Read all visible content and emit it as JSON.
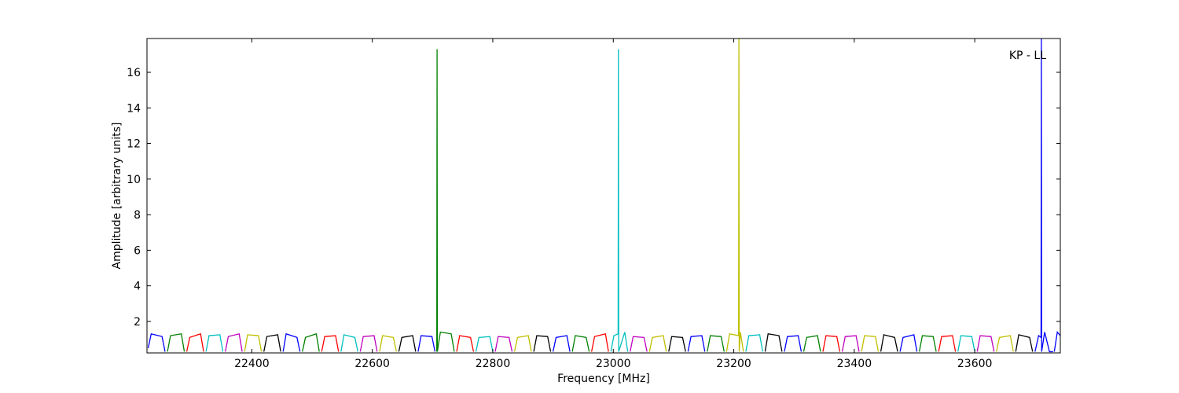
{
  "chart_data": {
    "type": "line",
    "xlabel": "Frequency [MHz]",
    "ylabel": "Amplitude [arbitrary units]",
    "annotation": "KP - LL",
    "xlim": [
      22226,
      23742
    ],
    "ylim": [
      0.23,
      17.9
    ],
    "xticks": [
      22400,
      22600,
      22800,
      23000,
      23200,
      23400,
      23600
    ],
    "yticks": [
      2,
      4,
      6,
      8,
      10,
      12,
      14,
      16
    ],
    "series": [
      {
        "color": "#0000ff",
        "x": [
          22228,
          22233,
          22251,
          22256
        ],
        "values": [
          0.5,
          1.3,
          1.15,
          0.3
        ]
      },
      {
        "color": "#008000",
        "x": [
          22260,
          22265,
          22283,
          22288
        ],
        "values": [
          0.3,
          1.2,
          1.3,
          0.3
        ]
      },
      {
        "color": "#ff0000",
        "x": [
          22292,
          22297,
          22315,
          22320
        ],
        "values": [
          0.3,
          1.1,
          1.3,
          0.3
        ]
      },
      {
        "color": "#00bfbf",
        "x": [
          22324,
          22329,
          22347,
          22352
        ],
        "values": [
          0.3,
          1.2,
          1.25,
          0.3
        ]
      },
      {
        "color": "#bf00bf",
        "x": [
          22356,
          22361,
          22379,
          22384
        ],
        "values": [
          0.3,
          1.15,
          1.3,
          0.3
        ]
      },
      {
        "color": "#bfbf00",
        "x": [
          22388,
          22393,
          22411,
          22416
        ],
        "values": [
          0.3,
          1.25,
          1.2,
          0.3
        ]
      },
      {
        "color": "#000000",
        "x": [
          22420,
          22425,
          22443,
          22448
        ],
        "values": [
          0.3,
          1.15,
          1.25,
          0.3
        ]
      },
      {
        "color": "#0000ff",
        "x": [
          22452,
          22457,
          22475,
          22480
        ],
        "values": [
          0.3,
          1.3,
          1.1,
          0.3
        ]
      },
      {
        "color": "#008000",
        "x": [
          22484,
          22489,
          22507,
          22512
        ],
        "values": [
          0.3,
          1.1,
          1.3,
          0.3
        ]
      },
      {
        "color": "#ff0000",
        "x": [
          22516,
          22521,
          22539,
          22544
        ],
        "values": [
          0.3,
          1.15,
          1.2,
          0.3
        ]
      },
      {
        "color": "#00bfbf",
        "x": [
          22548,
          22553,
          22571,
          22576
        ],
        "values": [
          0.3,
          1.25,
          1.1,
          0.3
        ]
      },
      {
        "color": "#bf00bf",
        "x": [
          22580,
          22585,
          22603,
          22608
        ],
        "values": [
          0.3,
          1.15,
          1.2,
          0.3
        ]
      },
      {
        "color": "#bfbf00",
        "x": [
          22612,
          22617,
          22635,
          22640
        ],
        "values": [
          0.3,
          1.2,
          1.1,
          0.3
        ]
      },
      {
        "color": "#000000",
        "x": [
          22644,
          22649,
          22667,
          22672
        ],
        "values": [
          0.3,
          1.1,
          1.2,
          0.3
        ]
      },
      {
        "color": "#0000ff",
        "x": [
          22676,
          22681,
          22699,
          22704
        ],
        "values": [
          0.3,
          1.2,
          1.15,
          0.3
        ]
      },
      {
        "color": "#008000",
        "x": [
          22707,
          22707.5,
          22708,
          22713,
          22731,
          22736
        ],
        "values": [
          0.3,
          17.3,
          0.3,
          1.4,
          1.3,
          0.3
        ]
      },
      {
        "color": "#ff0000",
        "x": [
          22740,
          22745,
          22763,
          22768
        ],
        "values": [
          0.3,
          1.2,
          1.1,
          0.3
        ]
      },
      {
        "color": "#00bfbf",
        "x": [
          22772,
          22777,
          22795,
          22800
        ],
        "values": [
          0.3,
          1.1,
          1.15,
          0.3
        ]
      },
      {
        "color": "#bf00bf",
        "x": [
          22804,
          22809,
          22827,
          22832
        ],
        "values": [
          0.3,
          1.15,
          1.1,
          0.3
        ]
      },
      {
        "color": "#bfbf00",
        "x": [
          22836,
          22841,
          22859,
          22864
        ],
        "values": [
          0.3,
          1.1,
          1.2,
          0.3
        ]
      },
      {
        "color": "#000000",
        "x": [
          22868,
          22873,
          22891,
          22896
        ],
        "values": [
          0.3,
          1.2,
          1.15,
          0.3
        ]
      },
      {
        "color": "#0000ff",
        "x": [
          22900,
          22905,
          22923,
          22928
        ],
        "values": [
          0.3,
          1.1,
          1.2,
          0.3
        ]
      },
      {
        "color": "#008000",
        "x": [
          22932,
          22937,
          22955,
          22960
        ],
        "values": [
          0.3,
          1.2,
          1.1,
          0.3
        ]
      },
      {
        "color": "#ff0000",
        "x": [
          22964,
          22969,
          22987,
          22992
        ],
        "values": [
          0.3,
          1.15,
          1.3,
          0.3
        ]
      },
      {
        "color": "#00bfbf",
        "x": [
          22996,
          23001,
          23008,
          23008.5,
          23009,
          23019,
          23024
        ],
        "values": [
          0.3,
          1.2,
          1.3,
          17.3,
          0.3,
          1.4,
          0.3
        ]
      },
      {
        "color": "#bf00bf",
        "x": [
          23028,
          23033,
          23051,
          23056
        ],
        "values": [
          0.3,
          1.15,
          1.1,
          0.3
        ]
      },
      {
        "color": "#bfbf00",
        "x": [
          23060,
          23065,
          23083,
          23088
        ],
        "values": [
          0.3,
          1.1,
          1.2,
          0.3
        ]
      },
      {
        "color": "#000000",
        "x": [
          23092,
          23097,
          23115,
          23120
        ],
        "values": [
          0.3,
          1.15,
          1.1,
          0.3
        ]
      },
      {
        "color": "#0000ff",
        "x": [
          23124,
          23129,
          23147,
          23152
        ],
        "values": [
          0.3,
          1.15,
          1.2,
          0.3
        ]
      },
      {
        "color": "#008000",
        "x": [
          23156,
          23161,
          23179,
          23184
        ],
        "values": [
          0.3,
          1.2,
          1.15,
          0.3
        ]
      },
      {
        "color": "#bfbf00",
        "x": [
          23188,
          23193,
          23208,
          23208.5,
          23209,
          23211,
          23216
        ],
        "values": [
          0.3,
          1.3,
          1.2,
          17.9,
          0.3,
          1.4,
          0.3
        ]
      },
      {
        "color": "#00bfbf",
        "x": [
          23220,
          23225,
          23243,
          23248
        ],
        "values": [
          0.3,
          1.2,
          1.25,
          0.3
        ]
      },
      {
        "color": "#000000",
        "x": [
          23252,
          23257,
          23275,
          23280
        ],
        "values": [
          0.3,
          1.3,
          1.2,
          0.3
        ]
      },
      {
        "color": "#0000ff",
        "x": [
          23284,
          23289,
          23307,
          23312
        ],
        "values": [
          0.3,
          1.15,
          1.2,
          0.3
        ]
      },
      {
        "color": "#008000",
        "x": [
          23316,
          23321,
          23339,
          23344
        ],
        "values": [
          0.3,
          1.1,
          1.2,
          0.3
        ]
      },
      {
        "color": "#ff0000",
        "x": [
          23348,
          23353,
          23371,
          23376
        ],
        "values": [
          0.3,
          1.2,
          1.15,
          0.3
        ]
      },
      {
        "color": "#bf00bf",
        "x": [
          23380,
          23385,
          23403,
          23408
        ],
        "values": [
          0.3,
          1.15,
          1.2,
          0.3
        ]
      },
      {
        "color": "#bfbf00",
        "x": [
          23412,
          23417,
          23435,
          23440
        ],
        "values": [
          0.3,
          1.2,
          1.15,
          0.3
        ]
      },
      {
        "color": "#000000",
        "x": [
          23444,
          23449,
          23467,
          23472
        ],
        "values": [
          0.3,
          1.25,
          1.1,
          0.3
        ]
      },
      {
        "color": "#0000ff",
        "x": [
          23476,
          23481,
          23499,
          23504
        ],
        "values": [
          0.3,
          1.1,
          1.25,
          0.3
        ]
      },
      {
        "color": "#008000",
        "x": [
          23508,
          23513,
          23531,
          23536
        ],
        "values": [
          0.3,
          1.2,
          1.15,
          0.3
        ]
      },
      {
        "color": "#ff0000",
        "x": [
          23540,
          23545,
          23563,
          23568
        ],
        "values": [
          0.3,
          1.15,
          1.2,
          0.3
        ]
      },
      {
        "color": "#00bfbf",
        "x": [
          23572,
          23577,
          23595,
          23600
        ],
        "values": [
          0.3,
          1.2,
          1.15,
          0.3
        ]
      },
      {
        "color": "#bf00bf",
        "x": [
          23604,
          23609,
          23627,
          23632
        ],
        "values": [
          0.3,
          1.2,
          1.15,
          0.3
        ]
      },
      {
        "color": "#bfbf00",
        "x": [
          23636,
          23641,
          23659,
          23664
        ],
        "values": [
          0.3,
          1.1,
          1.2,
          0.3
        ]
      },
      {
        "color": "#000000",
        "x": [
          23668,
          23673,
          23691,
          23696
        ],
        "values": [
          0.3,
          1.25,
          1.1,
          0.3
        ]
      },
      {
        "color": "#0000ff",
        "x": [
          23700,
          23706,
          23710,
          23710.5,
          23711,
          23716,
          23724,
          23730
        ],
        "values": [
          0.3,
          1.2,
          1.1,
          17.9,
          0.3,
          1.4,
          0.3,
          0.3
        ]
      },
      {
        "color": "#0000ff",
        "x": [
          23732,
          23737,
          23742
        ],
        "values": [
          0.3,
          1.4,
          1.2
        ]
      }
    ]
  }
}
